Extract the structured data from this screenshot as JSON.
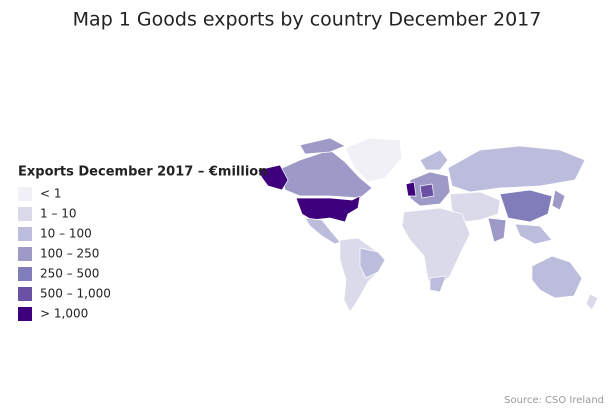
{
  "title": "Map 1 Goods exports by country December 2017",
  "legend": {
    "title": "Exports December 2017 – €million",
    "items": [
      {
        "label": "< 1",
        "color": "#f2f0f7"
      },
      {
        "label": "1 – 10",
        "color": "#dadaeb"
      },
      {
        "label": "10 – 100",
        "color": "#bcbddc"
      },
      {
        "label": "100 – 250",
        "color": "#9e9ac8"
      },
      {
        "label": "250 – 500",
        "color": "#807dba"
      },
      {
        "label": "500 – 1,000",
        "color": "#6a51a3"
      },
      {
        "label": "> 1,000",
        "color": "#3f007d"
      }
    ]
  },
  "source": "Source: CSO Ireland"
}
